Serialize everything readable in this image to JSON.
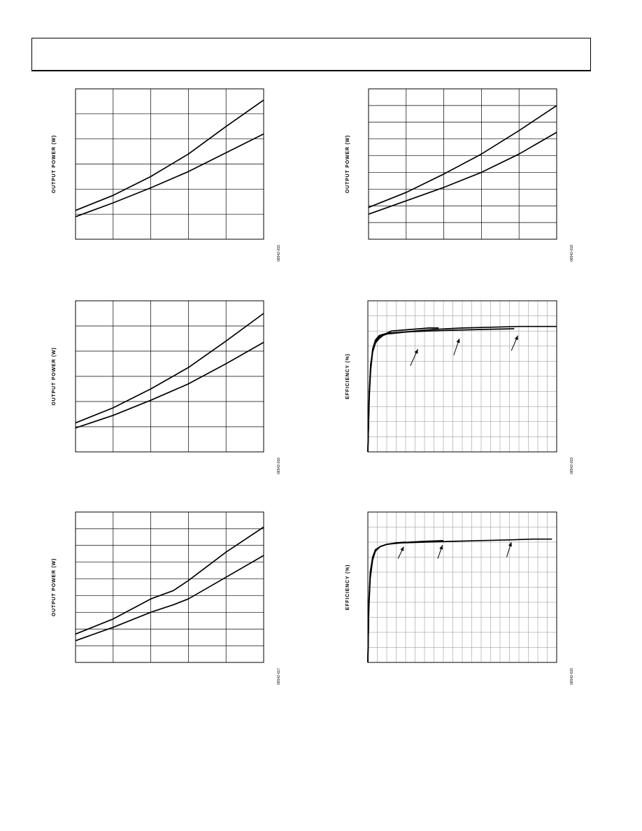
{
  "header": {
    "title": ""
  },
  "chart_data": [
    {
      "id": "c1",
      "fig": "06542-015",
      "type": "line",
      "ylabel": "OUTPUT POWER (W)",
      "xlim": [
        0,
        5
      ],
      "ylim": [
        0,
        6
      ],
      "x_gridlines": [
        1,
        2,
        3,
        4
      ],
      "y_gridlines": [
        1,
        2,
        3,
        4,
        5
      ],
      "grid": true,
      "series": [
        {
          "x": [
            0,
            1,
            2,
            3,
            4,
            5
          ],
          "y": [
            1.15,
            1.75,
            2.5,
            3.4,
            4.5,
            5.55
          ]
        },
        {
          "x": [
            0,
            1,
            2,
            3,
            4,
            5
          ],
          "y": [
            0.9,
            1.45,
            2.05,
            2.7,
            3.45,
            4.2
          ]
        }
      ]
    },
    {
      "id": "c2",
      "fig": "06542-018",
      "type": "line",
      "ylabel": "OUTPUT POWER (W)",
      "xlim": [
        0,
        5
      ],
      "ylim": [
        0,
        9
      ],
      "x_gridlines": [
        1,
        2,
        3,
        4
      ],
      "y_gridlines": [
        1,
        2,
        3,
        4,
        5,
        6,
        7,
        8
      ],
      "grid": true,
      "series": [
        {
          "x": [
            0,
            1,
            2,
            3,
            4,
            5
          ],
          "y": [
            1.9,
            2.8,
            3.9,
            5.1,
            6.5,
            8.0
          ]
        },
        {
          "x": [
            0,
            1,
            2,
            3,
            4,
            5
          ],
          "y": [
            1.5,
            2.3,
            3.1,
            4.0,
            5.1,
            6.4
          ]
        }
      ]
    },
    {
      "id": "c3",
      "fig": "06542-016",
      "type": "line",
      "ylabel": "OUTPUT POWER (W)",
      "xlim": [
        0,
        5
      ],
      "ylim": [
        0,
        6
      ],
      "x_gridlines": [
        1,
        2,
        3,
        4
      ],
      "y_gridlines": [
        1,
        2,
        3,
        4,
        5
      ],
      "grid": true,
      "series": [
        {
          "x": [
            0,
            1,
            2,
            3,
            4,
            5
          ],
          "y": [
            1.15,
            1.75,
            2.5,
            3.35,
            4.4,
            5.5
          ]
        },
        {
          "x": [
            0,
            1,
            2,
            3,
            4,
            5
          ],
          "y": [
            0.95,
            1.45,
            2.05,
            2.7,
            3.5,
            4.35
          ]
        }
      ]
    },
    {
      "id": "c4",
      "fig": "06542-019",
      "type": "line",
      "ylabel": "EFFICIENCY (%)",
      "xlim": [
        0,
        20
      ],
      "ylim": [
        0,
        100
      ],
      "x_gridlines": [
        1,
        2,
        3,
        4,
        5,
        6,
        7,
        8,
        9,
        10,
        11,
        12,
        13,
        14,
        15,
        16,
        17,
        18,
        19
      ],
      "y_gridlines": [
        10,
        20,
        30,
        40,
        50,
        60,
        70,
        80,
        90
      ],
      "grid": true,
      "series": [
        {
          "x": [
            0,
            0.15,
            0.3,
            0.5,
            0.8,
            1.2,
            1.8,
            2.5,
            3.5,
            4.5,
            5.5,
            6.5,
            7.5
          ],
          "y": [
            0,
            40,
            58,
            66,
            72,
            75,
            78,
            80,
            80.5,
            81,
            81.5,
            82,
            82
          ]
        },
        {
          "x": [
            0,
            0.15,
            0.3,
            0.5,
            0.8,
            1.2,
            2.0,
            3.0,
            4.5,
            6.5,
            9,
            12,
            15.5
          ],
          "y": [
            0,
            38,
            56,
            68,
            74,
            77,
            78.5,
            79,
            79.5,
            80,
            80.5,
            81,
            81.5
          ]
        },
        {
          "x": [
            0,
            0.15,
            0.3,
            0.5,
            0.8,
            1.2,
            2.0,
            3.5,
            5.0,
            7.0,
            10,
            13,
            16,
            18,
            20
          ],
          "y": [
            0,
            36,
            54,
            66,
            73,
            76,
            78,
            79,
            80,
            81,
            82,
            82.5,
            83,
            83,
            83
          ]
        }
      ],
      "annotations": [
        {
          "x_from": 4.5,
          "y_from": 57,
          "x_to": 5.3,
          "y_to": 68
        },
        {
          "x_from": 9.1,
          "y_from": 64,
          "x_to": 9.7,
          "y_to": 75
        },
        {
          "x_from": 15.2,
          "y_from": 67,
          "x_to": 15.9,
          "y_to": 77
        }
      ]
    },
    {
      "id": "c5",
      "fig": "06542-017",
      "type": "line",
      "ylabel": "OUTPUT POWER (W)",
      "xlim": [
        0,
        5
      ],
      "ylim": [
        0,
        9
      ],
      "x_gridlines": [
        1,
        2,
        3,
        4
      ],
      "y_gridlines": [
        1,
        2,
        3,
        4,
        5,
        6,
        7,
        8
      ],
      "grid": true,
      "series": [
        {
          "x": [
            0,
            1,
            2,
            2.6,
            3,
            4,
            5
          ],
          "y": [
            1.7,
            2.6,
            3.8,
            4.3,
            4.9,
            6.6,
            8.1
          ]
        },
        {
          "x": [
            0,
            1,
            2,
            2.6,
            3,
            4,
            5
          ],
          "y": [
            1.3,
            2.1,
            3.0,
            3.45,
            3.8,
            5.1,
            6.4
          ]
        }
      ]
    },
    {
      "id": "c6",
      "fig": "06542-020",
      "type": "line",
      "ylabel": "EFFICIENCY (%)",
      "xlim": [
        0,
        20
      ],
      "ylim": [
        0,
        100
      ],
      "x_gridlines": [
        1,
        2,
        3,
        4,
        5,
        6,
        7,
        8,
        9,
        10,
        11,
        12,
        13,
        14,
        15,
        16,
        17,
        18,
        19
      ],
      "y_gridlines": [
        10,
        20,
        30,
        40,
        50,
        60,
        70,
        80,
        90
      ],
      "grid": true,
      "series": [
        {
          "x": [
            0,
            0.1,
            0.25,
            0.5,
            0.8,
            1.3,
            2.0,
            3.0,
            4.0
          ],
          "y": [
            0,
            40,
            60,
            70,
            75,
            77,
            78.5,
            79.5,
            80
          ]
        },
        {
          "x": [
            0,
            0.1,
            0.25,
            0.5,
            0.8,
            1.3,
            2.0,
            3.0,
            4.5,
            6,
            8
          ],
          "y": [
            0,
            38,
            58,
            69,
            74,
            77,
            78.5,
            79.5,
            80,
            80.5,
            81
          ]
        },
        {
          "x": [
            0,
            0.1,
            0.25,
            0.5,
            0.8,
            1.3,
            2.0,
            3.5,
            6,
            9,
            12,
            15,
            17.5,
            19.5
          ],
          "y": [
            0,
            36,
            56,
            68,
            74,
            77,
            78.5,
            79.5,
            80,
            80.5,
            81,
            81.5,
            82,
            82
          ]
        }
      ],
      "annotations": [
        {
          "x_from": 3.2,
          "y_from": 69,
          "x_to": 3.8,
          "y_to": 77
        },
        {
          "x_from": 7.4,
          "y_from": 69,
          "x_to": 7.9,
          "y_to": 78
        },
        {
          "x_from": 14.7,
          "y_from": 70,
          "x_to": 15.2,
          "y_to": 80
        }
      ]
    }
  ]
}
